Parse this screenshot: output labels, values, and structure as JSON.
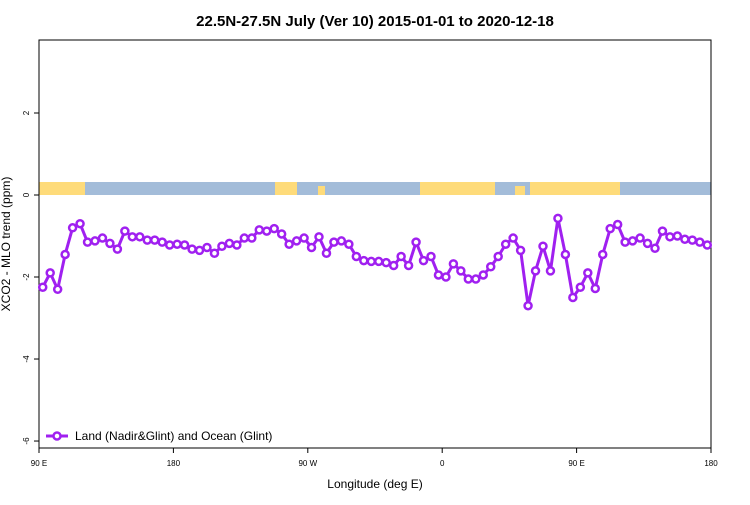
{
  "chart_data": {
    "type": "line",
    "title": "22.5N-27.5N July (Ver 10)   2015-01-01 to 2020-12-18",
    "x_label": "Longitude (deg E)",
    "y_label": "XCO2 - MLO trend (ppm)",
    "x": [
      92.5,
      97.5,
      102.5,
      107.5,
      112.5,
      117.5,
      122.5,
      127.5,
      132.5,
      137.5,
      142.5,
      147.5,
      152.5,
      157.5,
      162.5,
      167.5,
      172.5,
      177.5,
      182.5,
      187.5,
      192.5,
      197.5,
      202.5,
      207.5,
      212.5,
      217.5,
      222.5,
      227.5,
      232.5,
      237.5,
      242.5,
      247.5,
      252.5,
      257.5,
      262.5,
      267.5,
      272.5,
      277.5,
      282.5,
      287.5,
      292.5,
      297.5,
      302.5,
      307.5,
      312.5,
      317.5,
      322.5,
      327.5,
      332.5,
      337.5,
      342.5,
      347.5,
      352.5,
      357.5,
      362.5,
      367.5,
      372.5,
      377.5,
      382.5,
      387.5,
      392.5,
      397.5,
      402.5,
      407.5,
      412.5,
      417.5,
      422.5,
      427.5,
      432.5,
      437.5,
      442.5,
      447.5,
      452.5,
      457.5,
      462.5,
      467.5,
      472.5,
      477.5,
      482.5,
      487.5,
      492.5,
      497.5,
      502.5,
      507.5,
      512.5,
      517.5,
      522.5,
      527.5,
      532.5,
      537.5
    ],
    "series": [
      {
        "name": "Land (Nadir&Glint) and Ocean (Glint)",
        "color": "#a020f0",
        "values": [
          -2.25,
          -1.9,
          -2.3,
          -1.45,
          -0.8,
          -0.7,
          -1.15,
          -1.12,
          -1.05,
          -1.18,
          -1.32,
          -0.88,
          -1.02,
          -1.02,
          -1.1,
          -1.1,
          -1.15,
          -1.22,
          -1.2,
          -1.22,
          -1.32,
          -1.35,
          -1.28,
          -1.42,
          -1.25,
          -1.18,
          -1.22,
          -1.05,
          -1.05,
          -0.85,
          -0.88,
          -0.82,
          -0.95,
          -1.2,
          -1.12,
          -1.05,
          -1.28,
          -1.02,
          -1.42,
          -1.15,
          -1.12,
          -1.2,
          -1.5,
          -1.6,
          -1.62,
          -1.62,
          -1.65,
          -1.72,
          -1.5,
          -1.72,
          -1.15,
          -1.6,
          -1.5,
          -1.95,
          -2.0,
          -1.68,
          -1.85,
          -2.05,
          -2.05,
          -1.95,
          -1.75,
          -1.5,
          -1.2,
          -1.05,
          -1.35,
          -2.7,
          -1.85,
          -1.25,
          -1.85,
          -0.57,
          -1.45,
          -2.5,
          -2.25,
          -1.9,
          -2.28,
          -1.45,
          -0.82,
          -0.72,
          -1.15,
          -1.12,
          -1.05,
          -1.18,
          -1.3,
          -0.88,
          -1.02,
          -1.0,
          -1.08,
          -1.1,
          -1.15,
          -1.22
        ]
      }
    ],
    "xlim": [
      90,
      540
    ],
    "xticks": [
      {
        "value": 90,
        "label": "90 E"
      },
      180,
      {
        "value": 270,
        "label": "90 W"
      },
      {
        "value": 360,
        "label": "0"
      },
      {
        "value": 450,
        "label": "90 E"
      },
      180
    ],
    "ylim": [
      -6.17,
      3.78
    ],
    "yticks": [
      -6,
      -4,
      -2,
      0,
      2
    ],
    "legend": "bottom-left"
  }
}
